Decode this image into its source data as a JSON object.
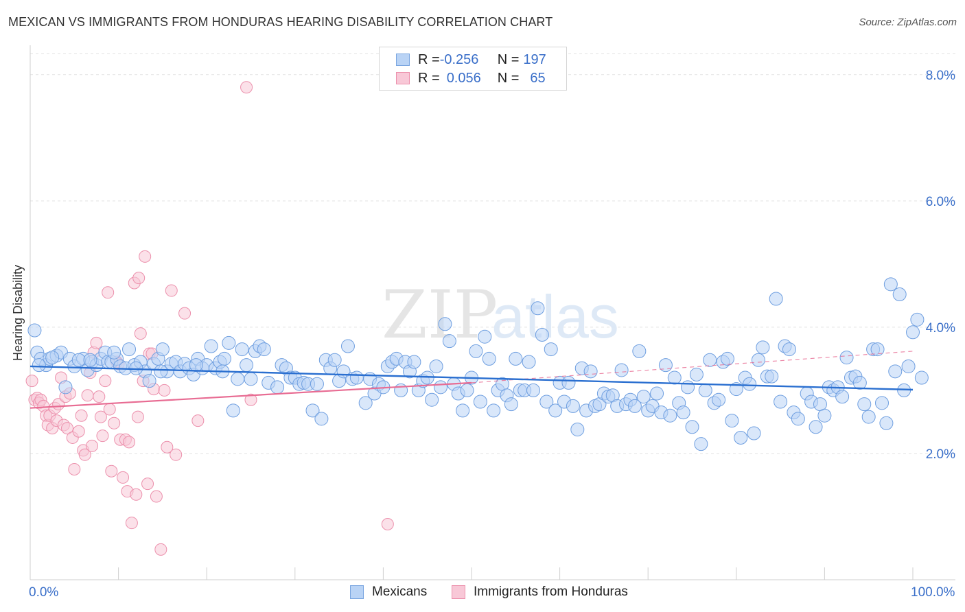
{
  "title": "MEXICAN VS IMMIGRANTS FROM HONDURAS HEARING DISABILITY CORRELATION CHART",
  "source": "Source: ZipAtlas.com",
  "watermark": {
    "zip": "ZIP",
    "atlas": "atlas"
  },
  "legend": {
    "rows": [
      {
        "r_label": "R = ",
        "r_value": "-0.256",
        "n_label": "N = ",
        "n_value": "197",
        "fill": "#b9d3f5",
        "stroke": "#7aa6e0"
      },
      {
        "r_label": "R = ",
        "r_value": "0.056",
        "n_label": "N = ",
        "n_value": "65",
        "fill": "#f8c8d7",
        "stroke": "#ec90ac"
      }
    ]
  },
  "bottom_legend": {
    "mexicans": "Mexicans",
    "honduras": "Immigrants from Honduras"
  },
  "x_axis": {
    "left_label": "0.0%",
    "right_label": "100.0%"
  },
  "y_axis": {
    "label": "Hearing Disability",
    "ticks": [
      "2.0%",
      "4.0%",
      "6.0%",
      "8.0%"
    ]
  },
  "chart_data": {
    "type": "scatter",
    "title": "MEXICAN VS IMMIGRANTS FROM HONDURAS HEARING DISABILITY CORRELATION CHART",
    "xlabel": "",
    "ylabel": "Hearing Disability",
    "xlim": [
      0,
      100
    ],
    "ylim": [
      0,
      8.4
    ],
    "yticks": [
      2,
      4,
      6,
      8
    ],
    "colors": {
      "mexicans_fill": "#b9d3f5",
      "mexicans_stroke": "#6f9fe0",
      "mexicans_line": "#2a6fd0",
      "honduras_fill": "#f8c8d7",
      "honduras_stroke": "#ec90ac",
      "honduras_line": "#e86c93"
    },
    "trend": {
      "mexicans": {
        "x": [
          0,
          100
        ],
        "y": [
          3.38,
          3.01
        ]
      },
      "honduras": {
        "x": [
          0,
          50
        ],
        "y": [
          2.72,
          3.12
        ]
      },
      "honduras_dashed": {
        "x": [
          50,
          100
        ],
        "y": [
          3.12,
          3.62
        ]
      }
    },
    "series": [
      {
        "name": "Mexicans",
        "points": [
          [
            0.5,
            3.95
          ],
          [
            0.8,
            3.6
          ],
          [
            1.2,
            3.5
          ],
          [
            1.8,
            3.4
          ],
          [
            2.2,
            3.5
          ],
          [
            3.0,
            3.55
          ],
          [
            3.5,
            3.6
          ],
          [
            4.0,
            3.05
          ],
          [
            4.5,
            3.5
          ],
          [
            5.0,
            3.38
          ],
          [
            6.0,
            3.5
          ],
          [
            6.5,
            3.32
          ],
          [
            7.0,
            3.45
          ],
          [
            7.5,
            3.4
          ],
          [
            8.0,
            3.5
          ],
          [
            8.5,
            3.6
          ],
          [
            8.8,
            3.45
          ],
          [
            9.2,
            3.45
          ],
          [
            9.8,
            3.5
          ],
          [
            10.2,
            3.38
          ],
          [
            10.8,
            3.35
          ],
          [
            11.2,
            3.65
          ],
          [
            11.8,
            3.4
          ],
          [
            12.5,
            3.45
          ],
          [
            13.0,
            3.3
          ],
          [
            13.5,
            3.15
          ],
          [
            14.0,
            3.42
          ],
          [
            14.5,
            3.5
          ],
          [
            15.0,
            3.65
          ],
          [
            15.5,
            3.3
          ],
          [
            16.0,
            3.42
          ],
          [
            16.5,
            3.45
          ],
          [
            17.0,
            3.3
          ],
          [
            17.5,
            3.42
          ],
          [
            18.0,
            3.35
          ],
          [
            18.5,
            3.25
          ],
          [
            19.0,
            3.5
          ],
          [
            19.5,
            3.35
          ],
          [
            20.0,
            3.4
          ],
          [
            20.5,
            3.7
          ],
          [
            21.0,
            3.35
          ],
          [
            21.5,
            3.45
          ],
          [
            22.0,
            3.5
          ],
          [
            22.5,
            3.75
          ],
          [
            23.0,
            2.68
          ],
          [
            23.5,
            3.18
          ],
          [
            24.0,
            3.65
          ],
          [
            24.5,
            3.4
          ],
          [
            25.0,
            3.18
          ],
          [
            25.5,
            3.62
          ],
          [
            26.0,
            3.7
          ],
          [
            26.5,
            3.65
          ],
          [
            27.0,
            3.12
          ],
          [
            28.0,
            3.05
          ],
          [
            28.5,
            3.4
          ],
          [
            29.0,
            3.35
          ],
          [
            29.5,
            3.2
          ],
          [
            30.0,
            3.2
          ],
          [
            30.5,
            3.1
          ],
          [
            31.0,
            3.12
          ],
          [
            31.5,
            3.1
          ],
          [
            32.0,
            2.68
          ],
          [
            32.5,
            3.1
          ],
          [
            33.0,
            2.55
          ],
          [
            33.5,
            3.48
          ],
          [
            34.0,
            3.35
          ],
          [
            34.5,
            3.48
          ],
          [
            35.0,
            3.15
          ],
          [
            35.5,
            3.3
          ],
          [
            36.0,
            3.7
          ],
          [
            36.5,
            3.18
          ],
          [
            37.0,
            3.2
          ],
          [
            38.0,
            2.8
          ],
          [
            38.5,
            3.18
          ],
          [
            39.0,
            2.95
          ],
          [
            39.5,
            3.1
          ],
          [
            40.0,
            3.05
          ],
          [
            40.5,
            3.38
          ],
          [
            41.0,
            3.45
          ],
          [
            41.5,
            3.5
          ],
          [
            42.0,
            3.0
          ],
          [
            42.5,
            3.45
          ],
          [
            43.0,
            3.3
          ],
          [
            43.5,
            3.45
          ],
          [
            44.0,
            3.0
          ],
          [
            44.5,
            3.15
          ],
          [
            45.0,
            3.2
          ],
          [
            45.5,
            2.85
          ],
          [
            46.0,
            3.38
          ],
          [
            46.5,
            3.05
          ],
          [
            47.0,
            4.05
          ],
          [
            47.5,
            3.78
          ],
          [
            48.0,
            3.1
          ],
          [
            48.5,
            2.95
          ],
          [
            49.0,
            2.68
          ],
          [
            49.5,
            3.0
          ],
          [
            50.0,
            3.2
          ],
          [
            50.5,
            3.62
          ],
          [
            51.0,
            2.82
          ],
          [
            51.5,
            3.85
          ],
          [
            52.0,
            3.5
          ],
          [
            52.5,
            2.68
          ],
          [
            53.0,
            3.0
          ],
          [
            53.5,
            3.1
          ],
          [
            54.0,
            2.92
          ],
          [
            54.5,
            2.78
          ],
          [
            55.0,
            3.5
          ],
          [
            55.5,
            3.0
          ],
          [
            56.0,
            3.0
          ],
          [
            56.5,
            3.45
          ],
          [
            57.0,
            3.0
          ],
          [
            57.5,
            4.3
          ],
          [
            58.0,
            3.88
          ],
          [
            58.5,
            2.82
          ],
          [
            59.0,
            3.65
          ],
          [
            59.5,
            2.68
          ],
          [
            60.0,
            3.12
          ],
          [
            60.5,
            2.82
          ],
          [
            61.0,
            3.12
          ],
          [
            61.5,
            2.75
          ],
          [
            62.0,
            2.38
          ],
          [
            62.5,
            3.35
          ],
          [
            63.0,
            2.68
          ],
          [
            63.5,
            3.3
          ],
          [
            64.0,
            2.75
          ],
          [
            64.5,
            2.78
          ],
          [
            65.0,
            2.95
          ],
          [
            65.5,
            2.9
          ],
          [
            66.0,
            2.92
          ],
          [
            66.5,
            2.75
          ],
          [
            67.0,
            3.32
          ],
          [
            67.5,
            2.78
          ],
          [
            68.0,
            2.85
          ],
          [
            68.5,
            2.75
          ],
          [
            69.0,
            3.62
          ],
          [
            69.5,
            2.9
          ],
          [
            70.0,
            2.68
          ],
          [
            70.5,
            2.75
          ],
          [
            71.0,
            2.95
          ],
          [
            71.5,
            2.65
          ],
          [
            72.0,
            3.4
          ],
          [
            72.5,
            2.6
          ],
          [
            73.0,
            3.2
          ],
          [
            73.5,
            2.8
          ],
          [
            74.0,
            2.65
          ],
          [
            74.5,
            3.05
          ],
          [
            75.0,
            2.42
          ],
          [
            75.5,
            3.25
          ],
          [
            76.0,
            2.15
          ],
          [
            76.5,
            3.0
          ],
          [
            77.0,
            3.48
          ],
          [
            77.5,
            2.8
          ],
          [
            78.0,
            2.85
          ],
          [
            78.5,
            3.45
          ],
          [
            79.0,
            3.5
          ],
          [
            79.5,
            2.52
          ],
          [
            80.0,
            3.02
          ],
          [
            80.5,
            2.25
          ],
          [
            81.0,
            3.2
          ],
          [
            81.5,
            3.1
          ],
          [
            82.0,
            2.32
          ],
          [
            82.5,
            3.48
          ],
          [
            83.0,
            3.68
          ],
          [
            83.5,
            3.22
          ],
          [
            84.0,
            3.22
          ],
          [
            84.5,
            4.45
          ],
          [
            85.0,
            2.82
          ],
          [
            85.5,
            3.7
          ],
          [
            86.0,
            3.65
          ],
          [
            86.5,
            2.65
          ],
          [
            87.0,
            2.55
          ],
          [
            88.0,
            2.95
          ],
          [
            88.5,
            2.82
          ],
          [
            89.0,
            2.42
          ],
          [
            89.5,
            2.78
          ],
          [
            90.0,
            2.6
          ],
          [
            90.5,
            3.05
          ],
          [
            91.0,
            3.0
          ],
          [
            91.5,
            3.05
          ],
          [
            92.0,
            2.9
          ],
          [
            92.5,
            3.52
          ],
          [
            93.0,
            3.2
          ],
          [
            93.5,
            3.22
          ],
          [
            94.0,
            3.12
          ],
          [
            94.5,
            2.78
          ],
          [
            95.0,
            2.58
          ],
          [
            95.5,
            3.65
          ],
          [
            96.0,
            3.65
          ],
          [
            96.5,
            2.8
          ],
          [
            97.0,
            2.48
          ],
          [
            97.5,
            4.68
          ],
          [
            98.0,
            3.3
          ],
          [
            98.5,
            4.52
          ],
          [
            99.0,
            3.0
          ],
          [
            99.5,
            3.38
          ],
          [
            100.0,
            3.92
          ],
          [
            100.5,
            4.12
          ],
          [
            101.0,
            3.2
          ],
          [
            1.0,
            3.4
          ],
          [
            2.5,
            3.52
          ],
          [
            5.5,
            3.48
          ],
          [
            6.8,
            3.48
          ],
          [
            9.5,
            3.6
          ],
          [
            12.0,
            3.35
          ],
          [
            14.8,
            3.3
          ],
          [
            18.8,
            3.4
          ],
          [
            21.8,
            3.3
          ]
        ]
      },
      {
        "name": "Immigrants from Honduras",
        "points": [
          [
            0.2,
            3.15
          ],
          [
            0.5,
            2.85
          ],
          [
            0.8,
            2.88
          ],
          [
            1.0,
            2.8
          ],
          [
            1.2,
            2.85
          ],
          [
            1.5,
            2.75
          ],
          [
            1.8,
            2.6
          ],
          [
            2.0,
            2.45
          ],
          [
            2.2,
            2.6
          ],
          [
            2.5,
            2.4
          ],
          [
            2.8,
            2.72
          ],
          [
            3.0,
            2.52
          ],
          [
            3.2,
            2.78
          ],
          [
            3.5,
            3.2
          ],
          [
            3.8,
            2.45
          ],
          [
            4.0,
            2.9
          ],
          [
            4.2,
            2.4
          ],
          [
            4.5,
            2.95
          ],
          [
            4.8,
            2.25
          ],
          [
            5.0,
            1.75
          ],
          [
            5.5,
            2.35
          ],
          [
            5.8,
            2.6
          ],
          [
            6.0,
            2.05
          ],
          [
            6.2,
            1.98
          ],
          [
            6.5,
            2.92
          ],
          [
            6.8,
            3.28
          ],
          [
            7.0,
            2.12
          ],
          [
            7.2,
            3.6
          ],
          [
            7.5,
            3.75
          ],
          [
            7.8,
            2.9
          ],
          [
            8.0,
            2.58
          ],
          [
            8.2,
            2.28
          ],
          [
            8.5,
            3.15
          ],
          [
            8.8,
            4.55
          ],
          [
            9.0,
            2.7
          ],
          [
            9.2,
            1.72
          ],
          [
            9.5,
            2.48
          ],
          [
            9.8,
            3.45
          ],
          [
            10.0,
            3.42
          ],
          [
            10.2,
            2.22
          ],
          [
            10.5,
            1.62
          ],
          [
            10.8,
            2.22
          ],
          [
            11.0,
            1.4
          ],
          [
            11.2,
            2.18
          ],
          [
            11.5,
            0.9
          ],
          [
            11.8,
            4.7
          ],
          [
            12.0,
            1.35
          ],
          [
            12.2,
            2.58
          ],
          [
            12.5,
            3.9
          ],
          [
            12.8,
            3.15
          ],
          [
            13.0,
            5.12
          ],
          [
            13.3,
            1.52
          ],
          [
            13.5,
            3.58
          ],
          [
            13.8,
            3.58
          ],
          [
            14.0,
            3.02
          ],
          [
            14.3,
            1.32
          ],
          [
            14.8,
            0.48
          ],
          [
            15.2,
            3.0
          ],
          [
            15.5,
            2.1
          ],
          [
            16.0,
            4.58
          ],
          [
            16.5,
            1.98
          ],
          [
            17.5,
            4.22
          ],
          [
            19.0,
            2.52
          ],
          [
            24.5,
            7.8
          ],
          [
            25.0,
            2.85
          ],
          [
            40.5,
            0.88
          ],
          [
            12.3,
            4.78
          ]
        ]
      }
    ]
  }
}
